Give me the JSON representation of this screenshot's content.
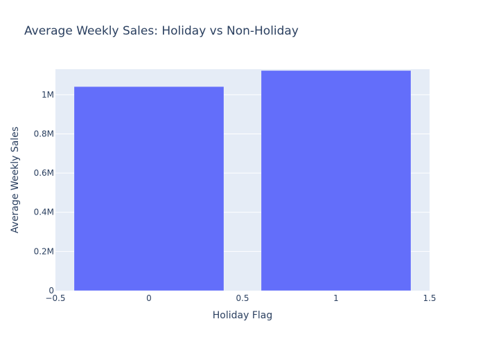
{
  "chart_data": {
    "type": "bar",
    "title": "Average Weekly Sales: Holiday vs Non-Holiday",
    "xlabel": "Holiday Flag",
    "ylabel": "Average Weekly Sales",
    "x": [
      0,
      1
    ],
    "values": [
      1041000,
      1123000
    ],
    "bar_width": 0.8,
    "xlim": [
      -0.5,
      1.5
    ],
    "ylim": [
      0,
      1130000
    ],
    "x_ticks": [
      -0.5,
      0,
      0.5,
      1,
      1.5
    ],
    "x_tick_labels": [
      "−0.5",
      "0",
      "0.5",
      "1",
      "1.5"
    ],
    "y_ticks": [
      0,
      200000,
      400000,
      600000,
      800000,
      1000000
    ],
    "y_tick_labels": [
      "0",
      "0.2M",
      "0.4M",
      "0.6M",
      "0.8M",
      "1M"
    ],
    "grid": true,
    "colors": {
      "bar": "#636efa",
      "plot_bg": "#e5ecf6",
      "grid": "#ffffff",
      "text": "#2a3f5f"
    }
  }
}
